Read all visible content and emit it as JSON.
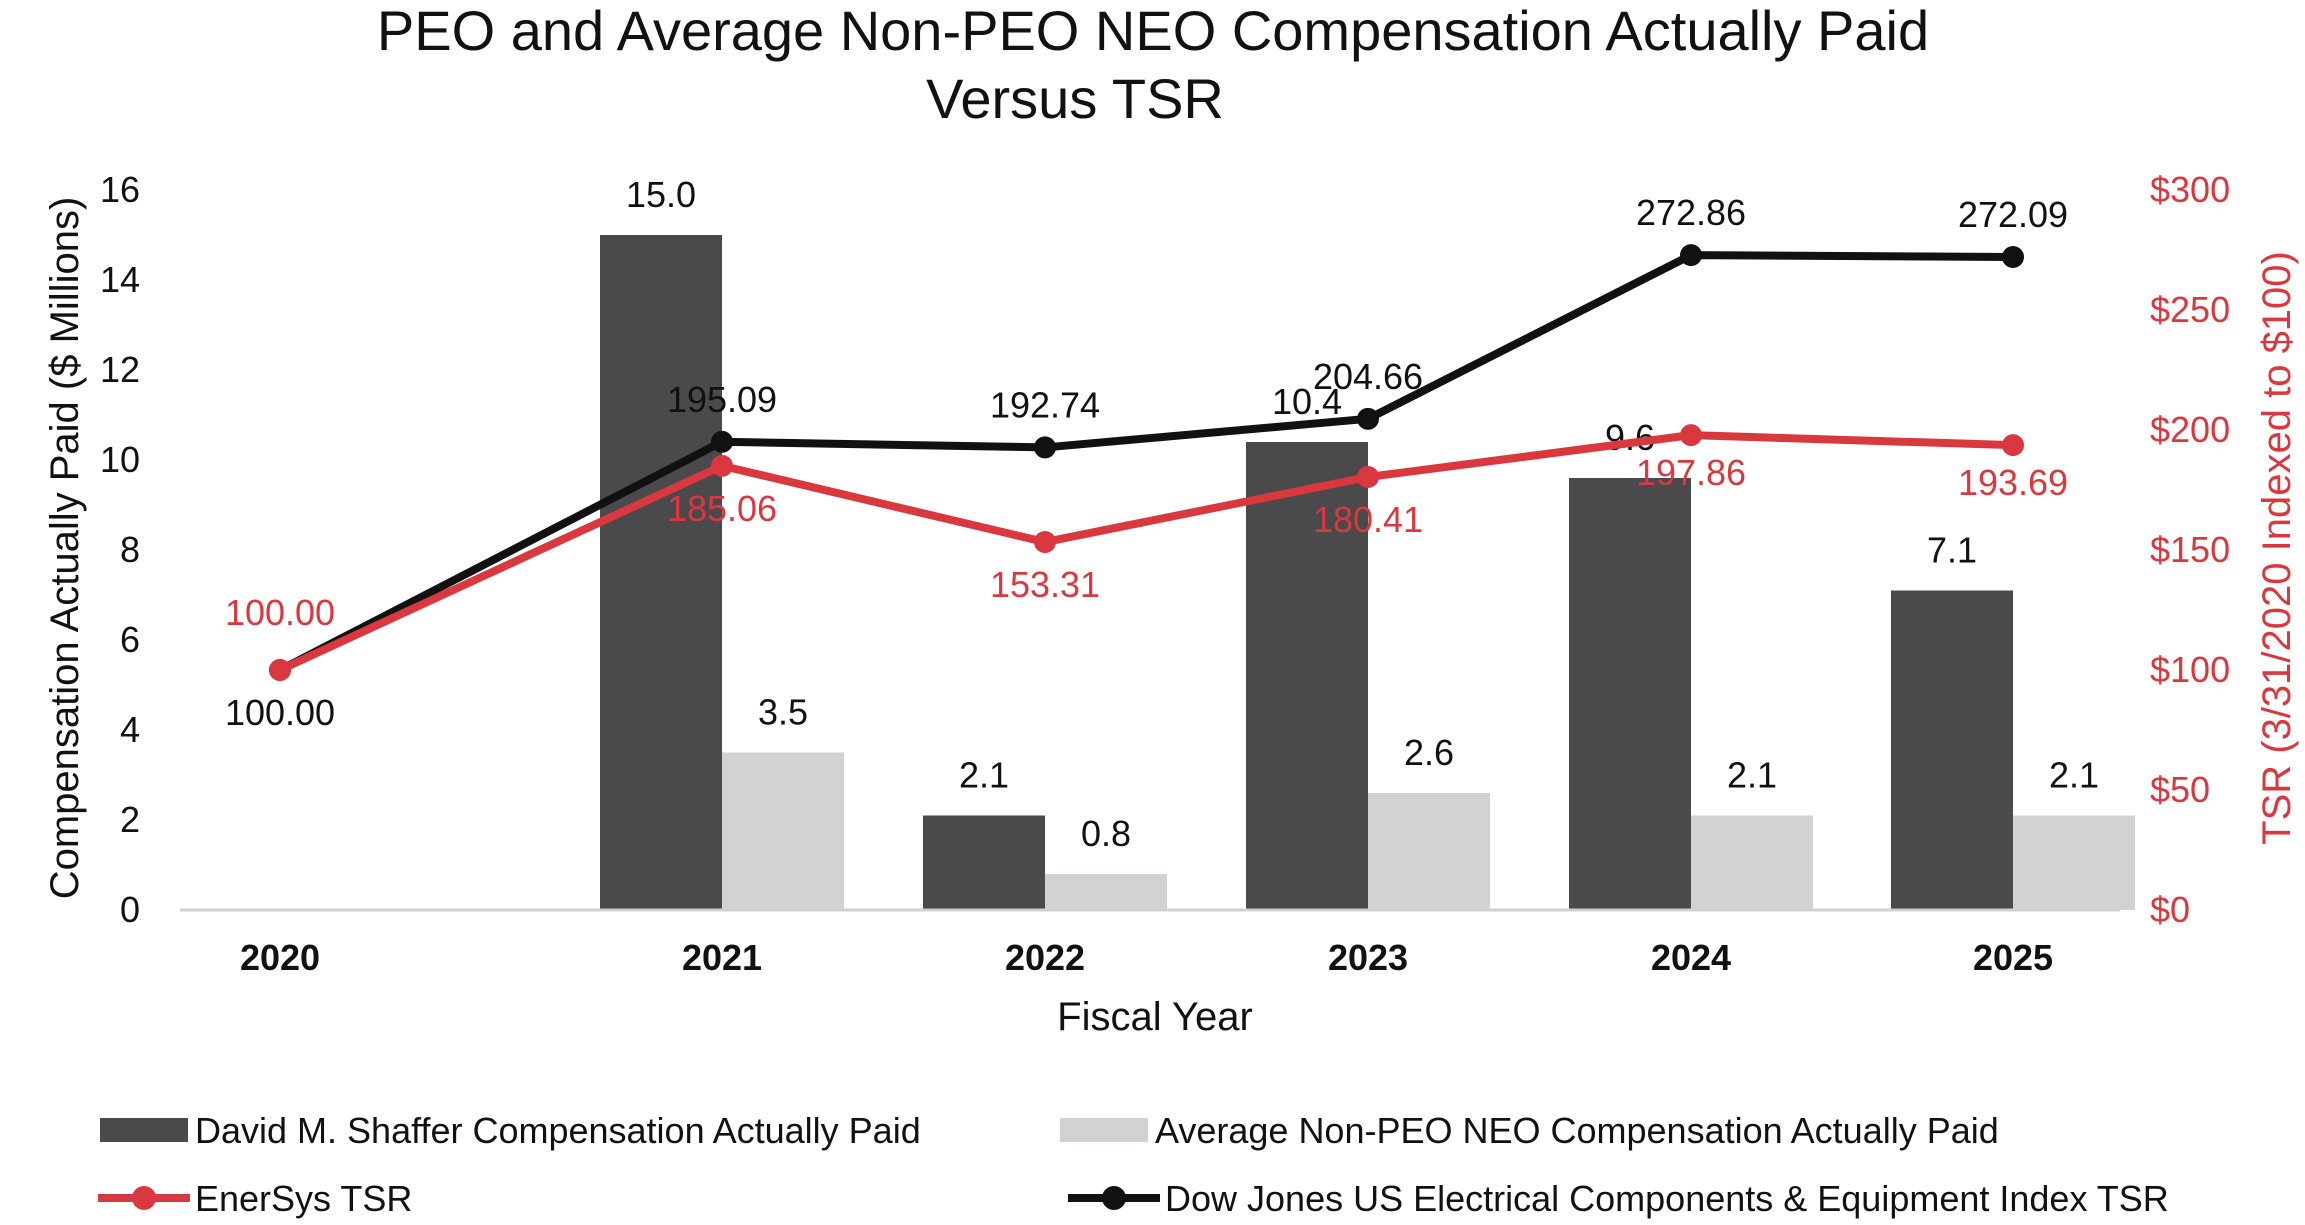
{
  "chart_data": {
    "type": "bar",
    "title_line1": "PEO and Average Non-PEO NEO Compensation Actually Paid",
    "title_line2": "Versus TSR",
    "xlabel": "Fiscal Year",
    "ylabel": "Compensation Actually Paid ($ Millions)",
    "y2label": "TSR (3/31/2020 Indexed to $100)",
    "ylim": [
      0,
      16
    ],
    "y2lim": [
      0,
      300
    ],
    "yticks": [
      "0",
      "2",
      "4",
      "6",
      "8",
      "10",
      "12",
      "14",
      "16"
    ],
    "y2ticks": [
      "$0",
      "$50",
      "$100",
      "$150",
      "$200",
      "$250",
      "$300"
    ],
    "categories": [
      "2020",
      "2021",
      "2022",
      "2023",
      "2024",
      "2025"
    ],
    "bar_series": [
      {
        "name": "David M. Shaffer Compensation Actually Paid",
        "color": "#4a4a4c",
        "values": [
          null,
          15.0,
          2.1,
          10.4,
          9.6,
          7.1
        ],
        "labels": [
          "",
          "15.0",
          "2.1",
          "10.4",
          "9.6",
          "7.1"
        ]
      },
      {
        "name": "Average Non-PEO NEO Compensation Actually Paid",
        "color": "#d1d2d4",
        "values": [
          null,
          3.5,
          0.8,
          2.6,
          2.1,
          2.1
        ],
        "labels": [
          "",
          "3.5",
          "0.8",
          "2.6",
          "2.1",
          "2.1"
        ]
      }
    ],
    "line_series": [
      {
        "name": "EnerSys TSR",
        "color": "#d8383e",
        "values": [
          100.0,
          185.06,
          153.31,
          180.41,
          197.86,
          193.69
        ],
        "labels": [
          "100.00",
          "185.06",
          "153.31",
          "180.41",
          "197.86",
          "193.69"
        ]
      },
      {
        "name": "Dow Jones US Electrical Components & Equipment Index TSR",
        "color": "#111111",
        "values": [
          100.0,
          195.09,
          192.74,
          204.66,
          272.86,
          272.09
        ],
        "labels": [
          "100.00",
          "195.09",
          "192.74",
          "204.66",
          "272.86",
          "272.09"
        ]
      }
    ],
    "legend_position": "bottom"
  }
}
